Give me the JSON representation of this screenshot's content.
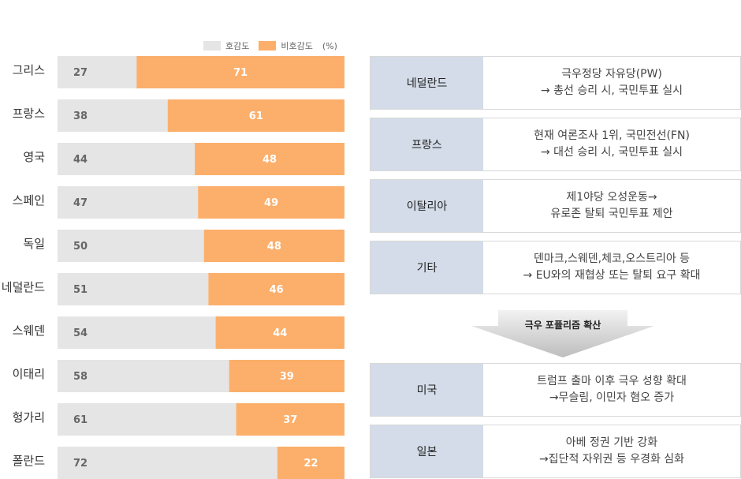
{
  "legend": {
    "favor": "호감도",
    "disfavor": "비호감도",
    "unit": "(%)"
  },
  "colors": {
    "favor": "#e5e5e5",
    "disfavor": "#fcaf6b",
    "panel_label_bg": "#d3dce8"
  },
  "chart_data": {
    "type": "bar",
    "orientation": "horizontal",
    "stacked": true,
    "categories": [
      "그리스",
      "프랑스",
      "영국",
      "스페인",
      "독일",
      "네덜란드",
      "스웨덴",
      "이태리",
      "헝가리",
      "폴란드"
    ],
    "series": [
      {
        "name": "호감도",
        "values": [
          27,
          38,
          44,
          47,
          50,
          51,
          54,
          58,
          61,
          72
        ]
      },
      {
        "name": "비호감도",
        "values": [
          71,
          61,
          48,
          49,
          48,
          46,
          44,
          39,
          37,
          22
        ]
      }
    ],
    "title": "",
    "xlabel": "",
    "ylabel": "",
    "unit": "%",
    "legend_position": "top-right"
  },
  "panel": {
    "rows": [
      {
        "label": "네덜란드",
        "line1": "극우정당 자유당(PW)",
        "line2": "→ 총선 승리 시, 국민투표 실시"
      },
      {
        "label": "프랑스",
        "line1": "현재 여론조사 1위, 국민전선(FN)",
        "line2": "→  대선 승리 시, 국민투표 실시"
      },
      {
        "label": "이탈리아",
        "line1": "제1야당 오성운동→",
        "line2": "유로존 탈퇴 국민투표 제안"
      },
      {
        "label": "기타",
        "line1": "덴마크,스웨덴,체코,오스트리아 등",
        "line2": "→ EU와의 재협상 또는 탈퇴 요구 확대"
      }
    ],
    "arrow_label": "극우 포퓰리즘 확산",
    "rows2": [
      {
        "label": "미국",
        "line1": "트럼프 출마 이후 극우 성향 확대",
        "line2": "→무슬림, 이민자 혐오 증가"
      },
      {
        "label": "일본",
        "line1": "아베 정권 기반 강화",
        "line2": "→집단적 자위권 등 우경화 심화"
      }
    ]
  }
}
